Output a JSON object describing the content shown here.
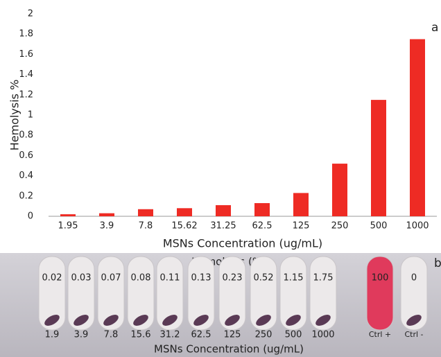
{
  "chart_data": {
    "type": "bar",
    "panel_label": "a",
    "ylabel": "Hemolysis %",
    "xlabel": "MSNs Concentration (ug/mL)",
    "categories": [
      "1.95",
      "3.9",
      "7.8",
      "15.62",
      "31.25",
      "62.5",
      "125",
      "250",
      "500",
      "1000"
    ],
    "values": [
      0.02,
      0.03,
      0.07,
      0.08,
      0.11,
      0.13,
      0.23,
      0.52,
      1.15,
      1.75
    ],
    "color": "#ee2b24",
    "ylim": [
      0,
      2
    ],
    "yticks": [
      0,
      0.2,
      0.4,
      0.6,
      0.8,
      1,
      1.2,
      1.4,
      1.6,
      1.8,
      2
    ],
    "grid": false
  },
  "photo_panel": {
    "panel_label": "b",
    "title": "Hemolysis (%)",
    "xlabel": "MSNs Concentration (ug/mL)",
    "tubes": [
      {
        "hemolysis": "0.02",
        "label": "1.9"
      },
      {
        "hemolysis": "0.03",
        "label": "3.9"
      },
      {
        "hemolysis": "0.07",
        "label": "7.8"
      },
      {
        "hemolysis": "0.08",
        "label": "15.6"
      },
      {
        "hemolysis": "0.11",
        "label": "31.2"
      },
      {
        "hemolysis": "0.13",
        "label": "62.5"
      },
      {
        "hemolysis": "0.23",
        "label": "125"
      },
      {
        "hemolysis": "0.52",
        "label": "250"
      },
      {
        "hemolysis": "1.15",
        "label": "500"
      },
      {
        "hemolysis": "1.75",
        "label": "1000"
      },
      {
        "hemolysis": "100",
        "label": "Ctrl +"
      },
      {
        "hemolysis": "0",
        "label": "Ctrl -"
      }
    ]
  }
}
